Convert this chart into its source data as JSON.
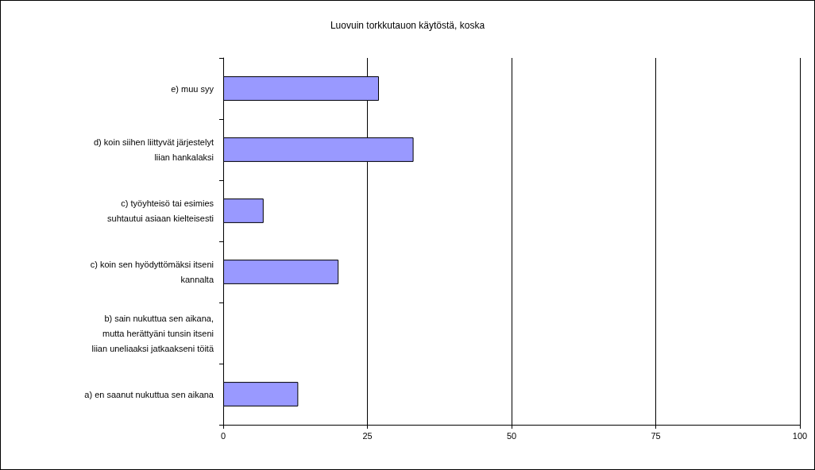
{
  "chart_data": {
    "type": "bar",
    "orientation": "horizontal",
    "title": "Luovuin torkkutauon käytöstä, koska",
    "categories": [
      "e) muu syy",
      "d) koin siihen liittyvät järjestelyt\nliian hankalaksi",
      "c) työyhteisö tai esimies\nsuhtautui asiaan kielteisesti",
      "c) koin sen hyödyttömäksi itseni\nkannalta",
      "b) sain nukuttua sen aikana,\nmutta herättyäni tunsin itseni\nliian uneliaaksi jatkaakseni töitä",
      "a) en saanut nukuttua sen aikana"
    ],
    "values": [
      27,
      33,
      7,
      20,
      0,
      13
    ],
    "color": "#9999ff",
    "xlim": [
      0,
      100
    ],
    "xticks": [
      0,
      25,
      50,
      75,
      100
    ],
    "grid": "x"
  }
}
